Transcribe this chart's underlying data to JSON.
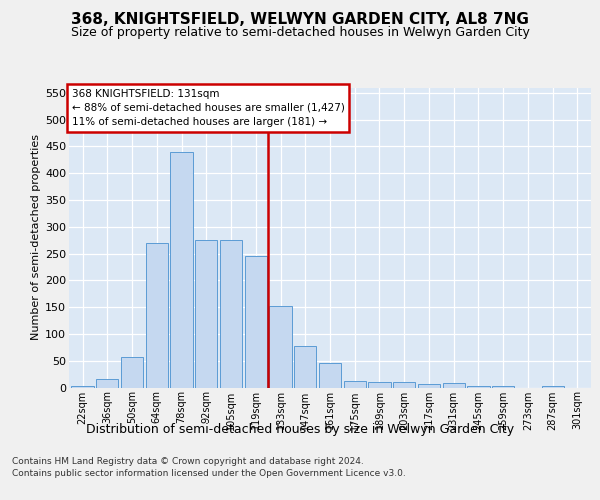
{
  "title": "368, KNIGHTSFIELD, WELWYN GARDEN CITY, AL8 7NG",
  "subtitle": "Size of property relative to semi-detached houses in Welwyn Garden City",
  "xlabel": "Distribution of semi-detached houses by size in Welwyn Garden City",
  "ylabel": "Number of semi-detached properties",
  "footnote": "Contains HM Land Registry data © Crown copyright and database right 2024.\nContains public sector information licensed under the Open Government Licence v3.0.",
  "categories": [
    "22sqm",
    "36sqm",
    "50sqm",
    "64sqm",
    "78sqm",
    "92sqm",
    "105sqm",
    "119sqm",
    "133sqm",
    "147sqm",
    "161sqm",
    "175sqm",
    "189sqm",
    "203sqm",
    "217sqm",
    "231sqm",
    "245sqm",
    "259sqm",
    "273sqm",
    "287sqm",
    "301sqm"
  ],
  "values": [
    3,
    16,
    57,
    270,
    440,
    275,
    276,
    245,
    153,
    78,
    46,
    12,
    11,
    11,
    6,
    8,
    3,
    2,
    0,
    3,
    0
  ],
  "bar_color": "#c5d8f0",
  "bar_edge_color": "#5b9bd5",
  "vline_color": "#cc0000",
  "annotation_title": "368 KNIGHTSFIELD: 131sqm",
  "annotation_line1": "← 88% of semi-detached houses are smaller (1,427)",
  "annotation_line2": "11% of semi-detached houses are larger (181) →",
  "ylim_max": 560,
  "yticks": [
    0,
    50,
    100,
    150,
    200,
    250,
    300,
    350,
    400,
    450,
    500,
    550
  ],
  "bg_color": "#dce8f5",
  "fig_bg_color": "#f0f0f0",
  "title_fontsize": 11,
  "subtitle_fontsize": 9,
  "tick_fontsize": 7,
  "ytick_fontsize": 8,
  "ylabel_fontsize": 8,
  "xlabel_fontsize": 9,
  "annot_fontsize": 7.5,
  "footnote_fontsize": 6.5
}
